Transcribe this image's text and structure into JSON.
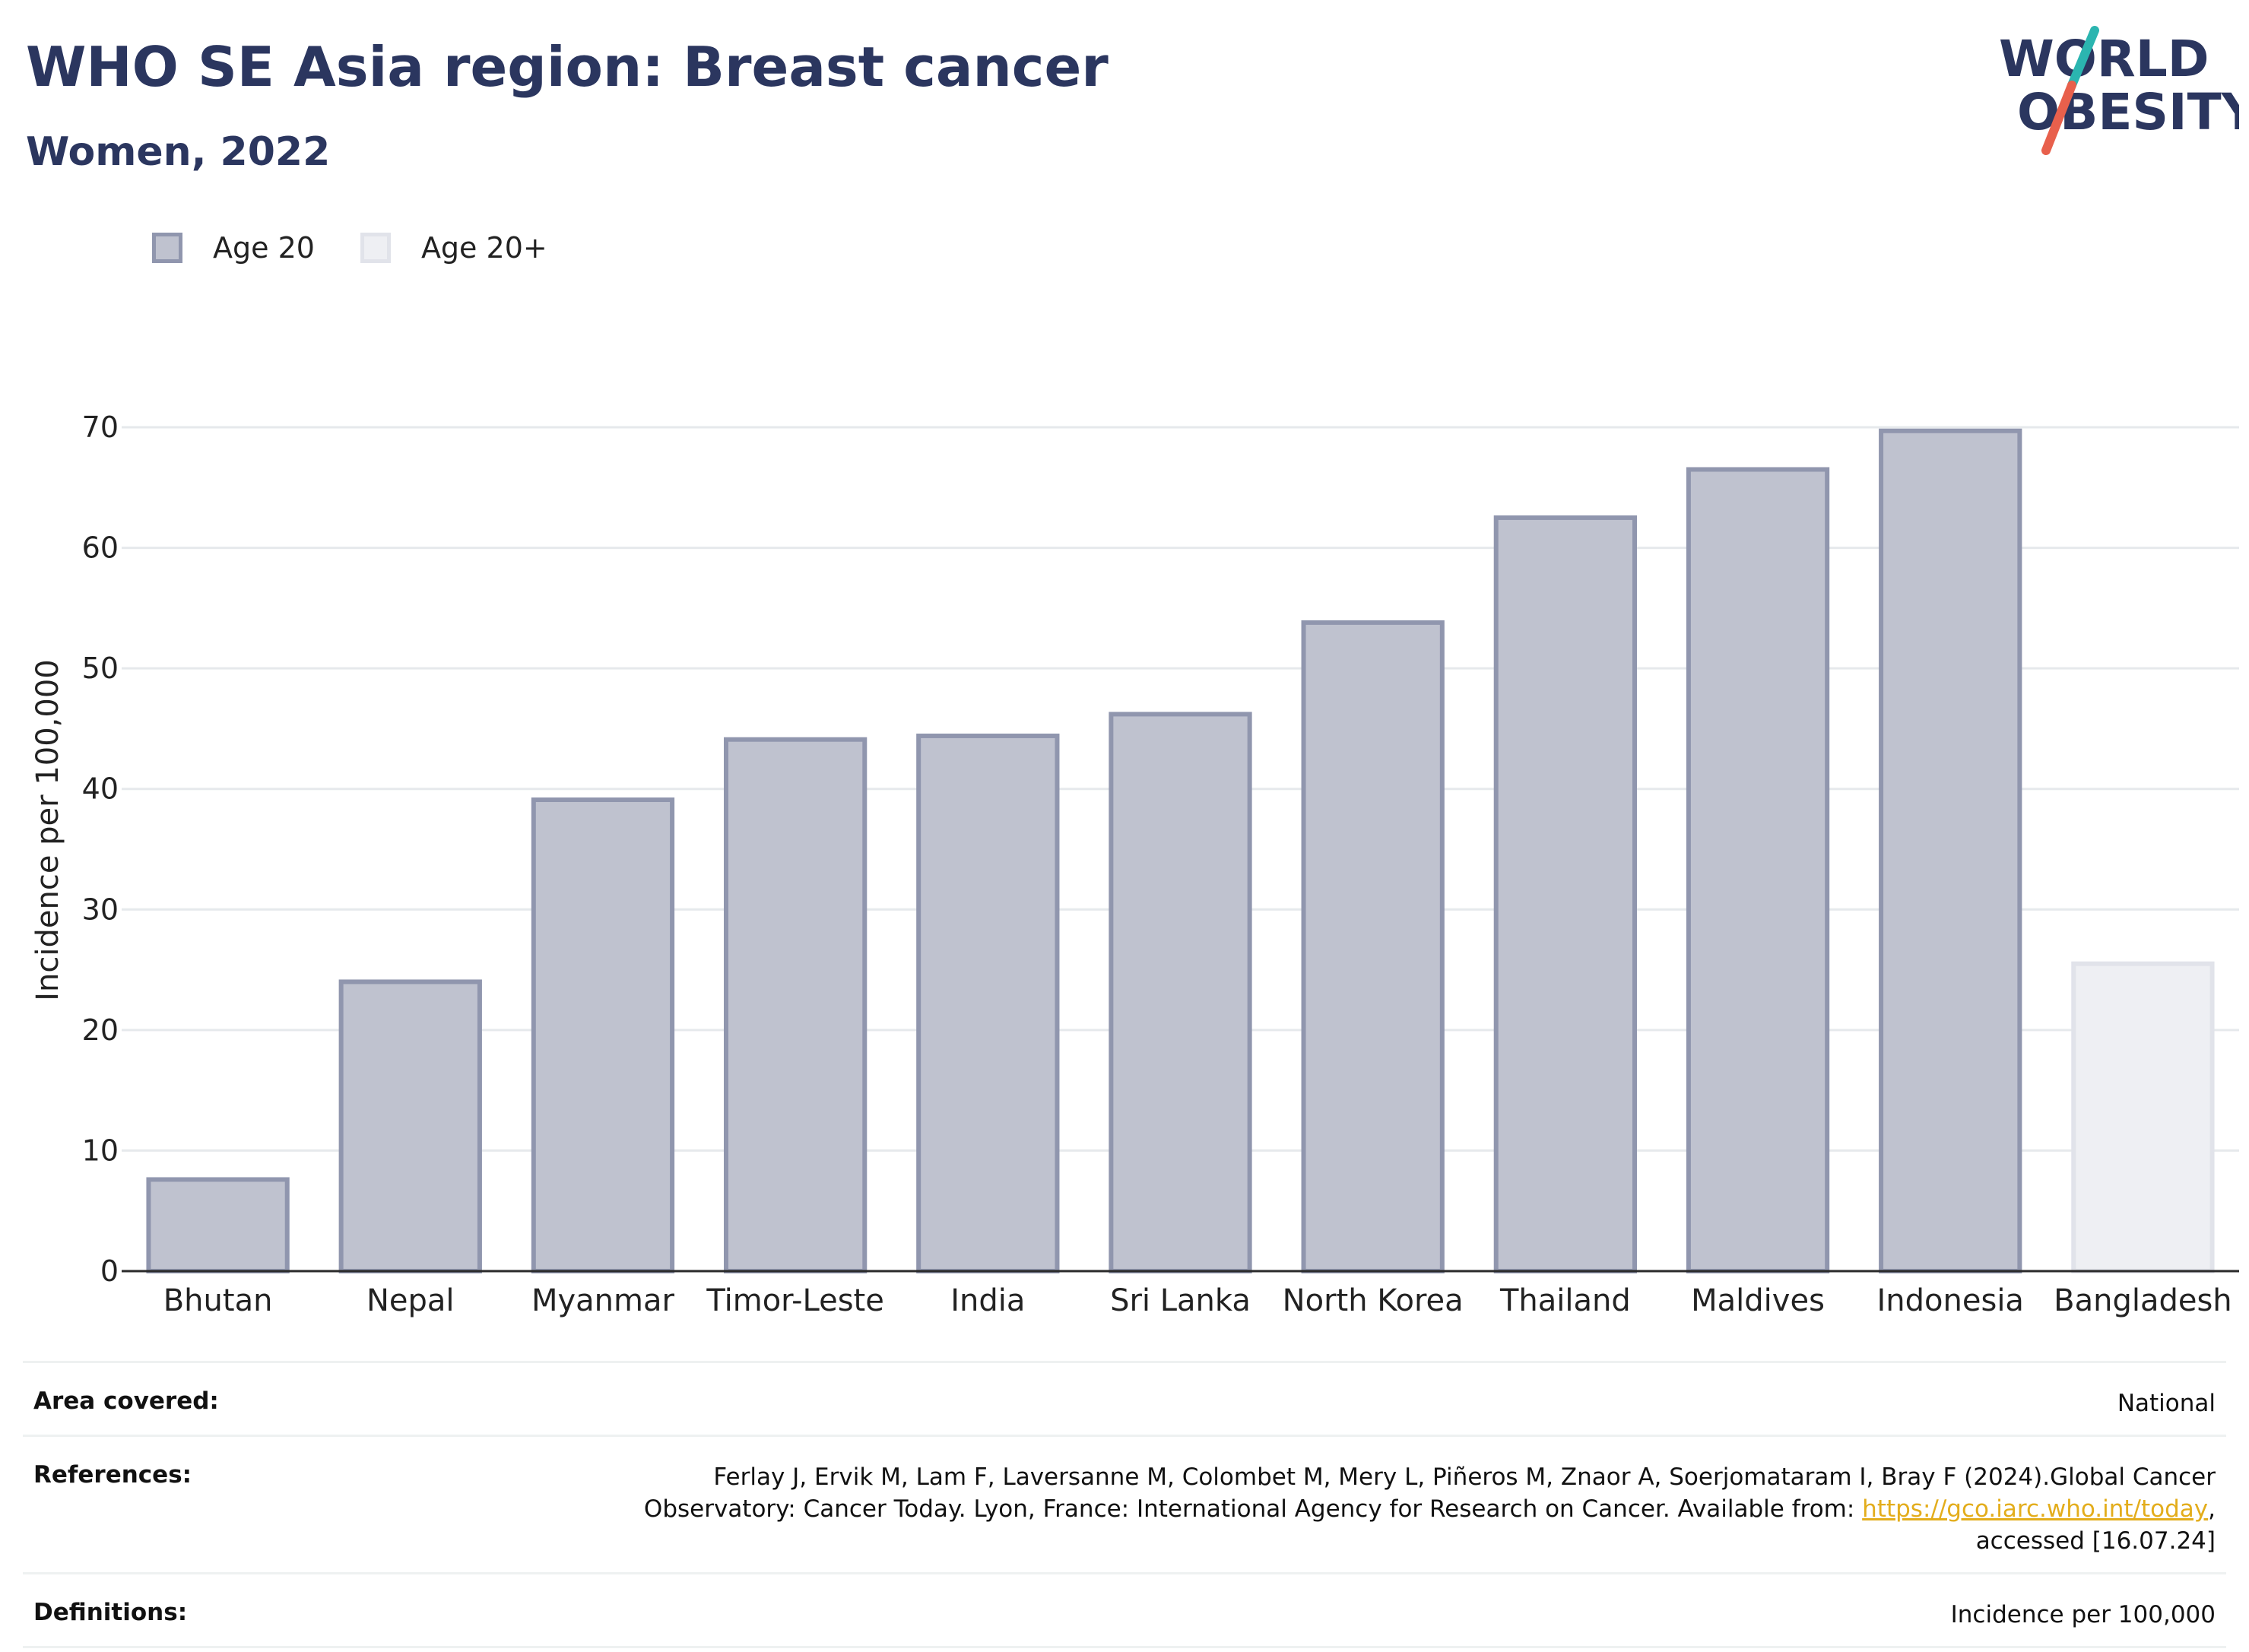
{
  "header": {
    "title": "WHO SE Asia region: Breast cancer",
    "subtitle": "Women, 2022"
  },
  "logo": {
    "line1": "WORLD",
    "line2": "OBESITY",
    "colors": {
      "text": "#2b365f",
      "slash_top": "#2bb5b0",
      "slash_bottom": "#e8604c"
    }
  },
  "legend": {
    "items": [
      {
        "label": "Age 20",
        "color": "#bfc2cf"
      },
      {
        "label": "Age 20+",
        "color": "#eeeff3"
      }
    ]
  },
  "chart_data": {
    "type": "bar",
    "ylabel": "Incidence per 100,000",
    "ylim": [
      0,
      70
    ],
    "yticks": [
      0,
      10,
      20,
      30,
      40,
      50,
      60,
      70
    ],
    "grid": true,
    "categories": [
      "Bhutan",
      "Nepal",
      "Myanmar",
      "Timor-Leste",
      "India",
      "Sri Lanka",
      "North Korea",
      "Thailand",
      "Maldives",
      "Indonesia",
      "Bangladesh"
    ],
    "values": [
      7.6,
      24.0,
      39.1,
      44.1,
      44.4,
      46.2,
      53.8,
      62.5,
      66.5,
      69.7,
      25.5
    ],
    "groups": [
      "Age 20",
      "Age 20",
      "Age 20",
      "Age 20",
      "Age 20",
      "Age 20",
      "Age 20",
      "Age 20",
      "Age 20",
      "Age 20",
      "Age 20+"
    ],
    "colors": {
      "Age 20": {
        "fill": "#bfc2cf",
        "stroke": "#9096ae"
      },
      "Age 20+": {
        "fill": "#eeeff3",
        "stroke": "#e1e3ea"
      }
    }
  },
  "info": {
    "area_label": "Area covered:",
    "area_value": "National",
    "references_label": "References:",
    "references_line1": "Ferlay J, Ervik M, Lam F, Laversanne M, Colombet M, Mery L, Piñeros M, Znaor A, Soerjomataram I, Bray F (2024).Global Cancer",
    "references_line2": "Observatory: Cancer Today. Lyon, France: International Agency for Research on Cancer. Available from: ",
    "references_link": "https://gco.iarc.who.int/today",
    "references_line2_end": ",",
    "references_line3": "accessed [16.07.24]",
    "definitions_label": "Definitions:",
    "definitions_value": "Incidence per 100,000"
  }
}
